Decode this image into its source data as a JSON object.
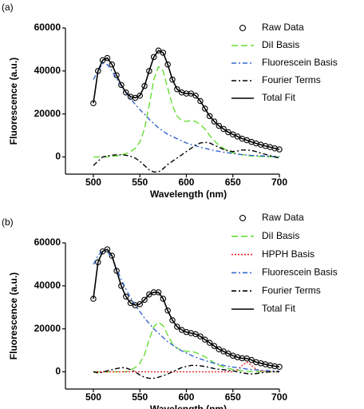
{
  "chart_data": [
    {
      "type": "line",
      "panel_label": "(a)",
      "x_label": "Wavelength (nm)",
      "y_label": "Fluorescence (a.u.)",
      "xlim": [
        470,
        700
      ],
      "xticks": [
        500,
        550,
        600,
        650,
        700
      ],
      "ylim": [
        -8000,
        60000
      ],
      "yticks": [
        0,
        20000,
        40000,
        60000
      ],
      "legend": "upper right",
      "x": [
        500,
        505,
        510,
        515,
        520,
        525,
        530,
        535,
        540,
        545,
        550,
        555,
        560,
        565,
        570,
        575,
        580,
        585,
        590,
        595,
        600,
        605,
        610,
        615,
        620,
        625,
        630,
        635,
        640,
        645,
        650,
        655,
        660,
        665,
        670,
        675,
        680,
        685,
        690,
        695,
        700
      ],
      "series": [
        {
          "name": "Raw Data",
          "color": "#000000",
          "marker": "circle",
          "linestyle": "none",
          "values": [
            25000,
            40000,
            45000,
            46000,
            43000,
            38000,
            33500,
            30000,
            28000,
            27500,
            28500,
            33000,
            40000,
            46500,
            49500,
            48500,
            43000,
            36000,
            31500,
            30000,
            29500,
            29500,
            28500,
            26000,
            22500,
            19000,
            16500,
            14500,
            13000,
            11500,
            10500,
            9500,
            8500,
            7800,
            7000,
            6300,
            5700,
            5100,
            4600,
            4000,
            3500
          ]
        },
        {
          "name": "DiI Basis",
          "color": "#66dd33",
          "linestyle": "dashed",
          "values": [
            0,
            0,
            0,
            0,
            200,
            500,
            1000,
            1500,
            2500,
            4000,
            7000,
            13000,
            24000,
            36000,
            42000,
            40000,
            32000,
            24000,
            19000,
            17000,
            16500,
            17000,
            16500,
            15000,
            13000,
            10000,
            7500,
            5500,
            4000,
            2800,
            2000,
            1500,
            1000,
            700,
            500,
            300,
            200,
            100,
            50,
            0,
            0
          ]
        },
        {
          "name": "Fluorescein Basis",
          "color": "#3366cc",
          "linestyle": "dashdot",
          "values": [
            36000,
            40000,
            43500,
            43000,
            40000,
            36500,
            33000,
            30000,
            27000,
            24500,
            22000,
            20000,
            17500,
            15500,
            13500,
            12000,
            10500,
            9500,
            8500,
            7500,
            6500,
            5800,
            5200,
            4500,
            4000,
            3500,
            3000,
            2600,
            2200,
            1900,
            1600,
            1300,
            1100,
            900,
            700,
            600,
            500,
            400,
            300,
            200,
            200
          ]
        },
        {
          "name": "Fourier Terms",
          "color": "#000000",
          "linestyle": "dashdot",
          "values": [
            -4000,
            -2000,
            0,
            500,
            800,
            1000,
            1000,
            800,
            300,
            -500,
            -2000,
            -4000,
            -6000,
            -7000,
            -7000,
            -5500,
            -3500,
            -2000,
            -500,
            1000,
            2500,
            4000,
            5500,
            6500,
            6800,
            6500,
            5500,
            4500,
            3500,
            2800,
            2500,
            2800,
            3200,
            3200,
            3000,
            2500,
            1800,
            1200,
            600,
            0,
            -500
          ]
        },
        {
          "name": "Total Fit",
          "color": "#000000",
          "linestyle": "solid",
          "values": [
            25000,
            40000,
            45000,
            46000,
            43000,
            38000,
            33500,
            30000,
            28000,
            27500,
            28500,
            33000,
            40000,
            46500,
            49500,
            48500,
            43000,
            36000,
            31500,
            30000,
            29500,
            29500,
            28500,
            26000,
            22500,
            19000,
            16500,
            14500,
            13000,
            11500,
            10500,
            9500,
            8500,
            7800,
            7000,
            6300,
            5700,
            5100,
            4600,
            4000,
            3500
          ]
        }
      ]
    },
    {
      "type": "line",
      "panel_label": "(b)",
      "x_label": "Wavelength (nm)",
      "y_label": "Fluorescence (a.u.)",
      "xlim": [
        470,
        700
      ],
      "xticks": [
        500,
        550,
        600,
        650,
        700
      ],
      "ylim": [
        -8000,
        60000
      ],
      "yticks": [
        0,
        20000,
        40000,
        60000
      ],
      "legend": "upper right",
      "x": [
        500,
        505,
        510,
        515,
        520,
        525,
        530,
        535,
        540,
        545,
        550,
        555,
        560,
        565,
        570,
        575,
        580,
        585,
        590,
        595,
        600,
        605,
        610,
        615,
        620,
        625,
        630,
        635,
        640,
        645,
        650,
        655,
        660,
        665,
        670,
        675,
        680,
        685,
        690,
        695,
        700
      ],
      "series": [
        {
          "name": "Raw Data",
          "color": "#000000",
          "marker": "circle",
          "linestyle": "none",
          "values": [
            34000,
            51000,
            56000,
            57000,
            54000,
            47000,
            40000,
            35000,
            32000,
            31000,
            31500,
            33500,
            36000,
            37000,
            37000,
            34000,
            28500,
            24000,
            21000,
            19500,
            18500,
            18000,
            17500,
            16500,
            15000,
            13500,
            12000,
            10500,
            9500,
            8500,
            7500,
            6800,
            6300,
            6200,
            5500,
            4500,
            4000,
            3500,
            3000,
            2600,
            2300
          ]
        },
        {
          "name": "DiI Basis",
          "color": "#66dd33",
          "linestyle": "dashed",
          "values": [
            0,
            0,
            0,
            0,
            0,
            0,
            0,
            0,
            1000,
            2000,
            4000,
            8000,
            15000,
            21000,
            23000,
            21500,
            17000,
            13000,
            11000,
            10000,
            9500,
            9500,
            9000,
            8000,
            7000,
            5500,
            4200,
            3000,
            2200,
            1600,
            1100,
            800,
            500,
            300,
            200,
            100,
            0,
            0,
            0,
            0,
            0
          ]
        },
        {
          "name": "HPPH Basis",
          "color": "#ee2222",
          "linestyle": "dotted",
          "values": [
            0,
            0,
            0,
            0,
            0,
            0,
            0,
            0,
            0,
            0,
            0,
            0,
            0,
            0,
            0,
            0,
            0,
            0,
            0,
            0,
            0,
            0,
            0,
            0,
            0,
            0,
            0,
            0,
            0,
            0,
            0,
            1000,
            3000,
            4500,
            3000,
            1200,
            400,
            100,
            0,
            0,
            0
          ]
        },
        {
          "name": "Fluorescein Basis",
          "color": "#3366cc",
          "linestyle": "dashdot",
          "values": [
            50000,
            54000,
            56500,
            56000,
            53000,
            48000,
            43000,
            38500,
            34500,
            31000,
            28000,
            25000,
            22500,
            20000,
            18000,
            16000,
            14000,
            12500,
            11000,
            9800,
            8700,
            7700,
            6800,
            6000,
            5300,
            4600,
            4000,
            3500,
            3000,
            2600,
            2200,
            1900,
            1600,
            1300,
            1100,
            900,
            700,
            600,
            500,
            400,
            300
          ]
        },
        {
          "name": "Fourier Terms",
          "color": "#000000",
          "linestyle": "dashdot",
          "values": [
            0,
            -500,
            -200,
            500,
            1000,
            1500,
            2000,
            1800,
            1000,
            0,
            -1500,
            -2500,
            -3000,
            -3000,
            -2500,
            -1800,
            -1000,
            0,
            1000,
            2000,
            2500,
            3000,
            3000,
            2800,
            2500,
            2000,
            1500,
            1200,
            1000,
            700,
            500,
            0,
            -500,
            -800,
            -1000,
            -800,
            -500,
            -200,
            0,
            0,
            0
          ]
        },
        {
          "name": "Total Fit",
          "color": "#000000",
          "linestyle": "solid",
          "values": [
            34000,
            51000,
            56000,
            57000,
            54000,
            47000,
            40000,
            35000,
            32000,
            31000,
            31500,
            33500,
            36000,
            37000,
            37000,
            34000,
            28500,
            24000,
            21000,
            19500,
            18500,
            18000,
            17500,
            16500,
            15000,
            13500,
            12000,
            10500,
            9500,
            8500,
            7500,
            6800,
            6300,
            6200,
            5500,
            4500,
            4000,
            3500,
            3000,
            2600,
            2300
          ]
        }
      ]
    }
  ]
}
